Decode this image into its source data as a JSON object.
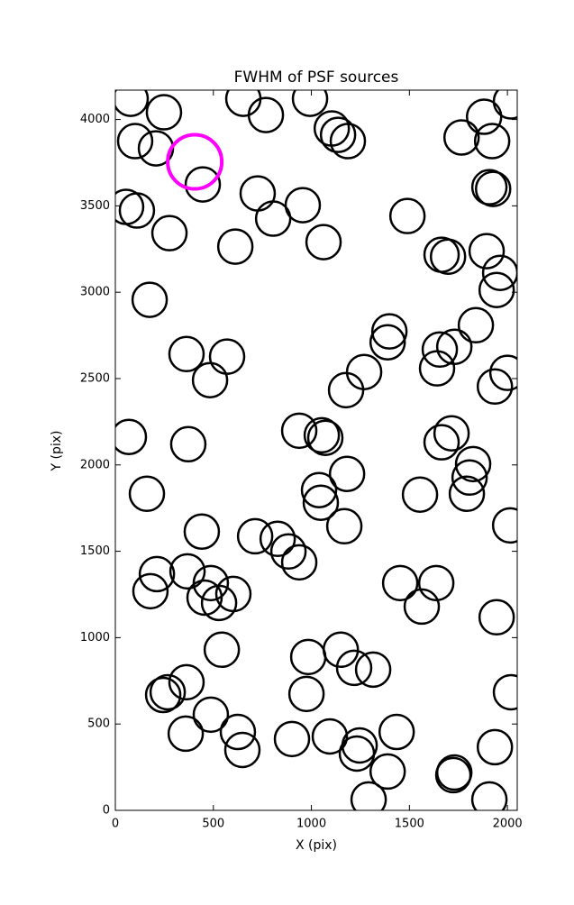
{
  "chart_data": {
    "type": "scatter",
    "title": "FWHM of PSF sources",
    "x_label": "X (pix)",
    "y_label": "Y (pix)",
    "xlim": [
      0,
      2050
    ],
    "ylim": [
      0,
      4170
    ],
    "xticks": [
      0,
      500,
      1000,
      1500,
      2000
    ],
    "yticks": [
      0,
      500,
      1000,
      1500,
      2000,
      2500,
      3000,
      3500,
      4000
    ],
    "series": [
      {
        "color": "#000000",
        "x": [
          78,
          248,
          101,
          207,
          446,
          653,
          768,
          993,
          1104,
          1136,
          1186,
          2018,
          1881,
          1766,
          1922,
          1908,
          1927,
          55,
          110,
          276,
          726,
          956,
          805,
          612,
          1062,
          1490,
          1664,
          1697,
          1894,
          1963,
          1945,
          175,
          1398,
          1389,
          1839,
          363,
          570,
          483,
          1729,
          1655,
          1641,
          1269,
          1177,
          2000,
          1936,
          69,
          372,
          938,
          1053,
          1071,
          1715,
          1664,
          1825,
          1807,
          1793,
          1182,
          1039,
          1048,
          1554,
          161,
          441,
          1168,
          2014,
          713,
          828,
          883,
          938,
          212,
          368,
          179,
          487,
          455,
          602,
          529,
          1453,
          1637,
          1563,
          1945,
          543,
          984,
          1150,
          1218,
          1315,
          363,
          267,
          244,
          975,
          2018,
          487,
          625,
          359,
          901,
          1094,
          1246,
          1232,
          1435,
          1389,
          648,
          1936,
          1729,
          1724,
          1292,
          1908
        ],
        "y": [
          4120,
          4042,
          3875,
          3833,
          3624,
          4120,
          4026,
          4120,
          3948,
          3911,
          3875,
          4105,
          4016,
          3896,
          3875,
          3608,
          3598,
          3494,
          3473,
          3342,
          3572,
          3504,
          3426,
          3264,
          3290,
          3441,
          3217,
          3206,
          3238,
          3112,
          3013,
          2956,
          2773,
          2710,
          2809,
          2642,
          2627,
          2491,
          2684,
          2668,
          2559,
          2538,
          2433,
          2533,
          2454,
          2162,
          2120,
          2198,
          2172,
          2157,
          2183,
          2131,
          2005,
          1927,
          1833,
          1948,
          1854,
          1781,
          1828,
          1833,
          1614,
          1645,
          1650,
          1587,
          1572,
          1499,
          1436,
          1368,
          1384,
          1269,
          1316,
          1232,
          1253,
          1201,
          1316,
          1316,
          1180,
          1118,
          930,
          888,
          930,
          825,
          815,
          742,
          684,
          668,
          674,
          684,
          554,
          454,
          444,
          413,
          428,
          376,
          329,
          454,
          225,
          350,
          366,
          219,
          204,
          63,
          63
        ]
      },
      {
        "color": "#ff00ff",
        "x": [
          405
        ],
        "y": [
          3755
        ]
      }
    ]
  }
}
